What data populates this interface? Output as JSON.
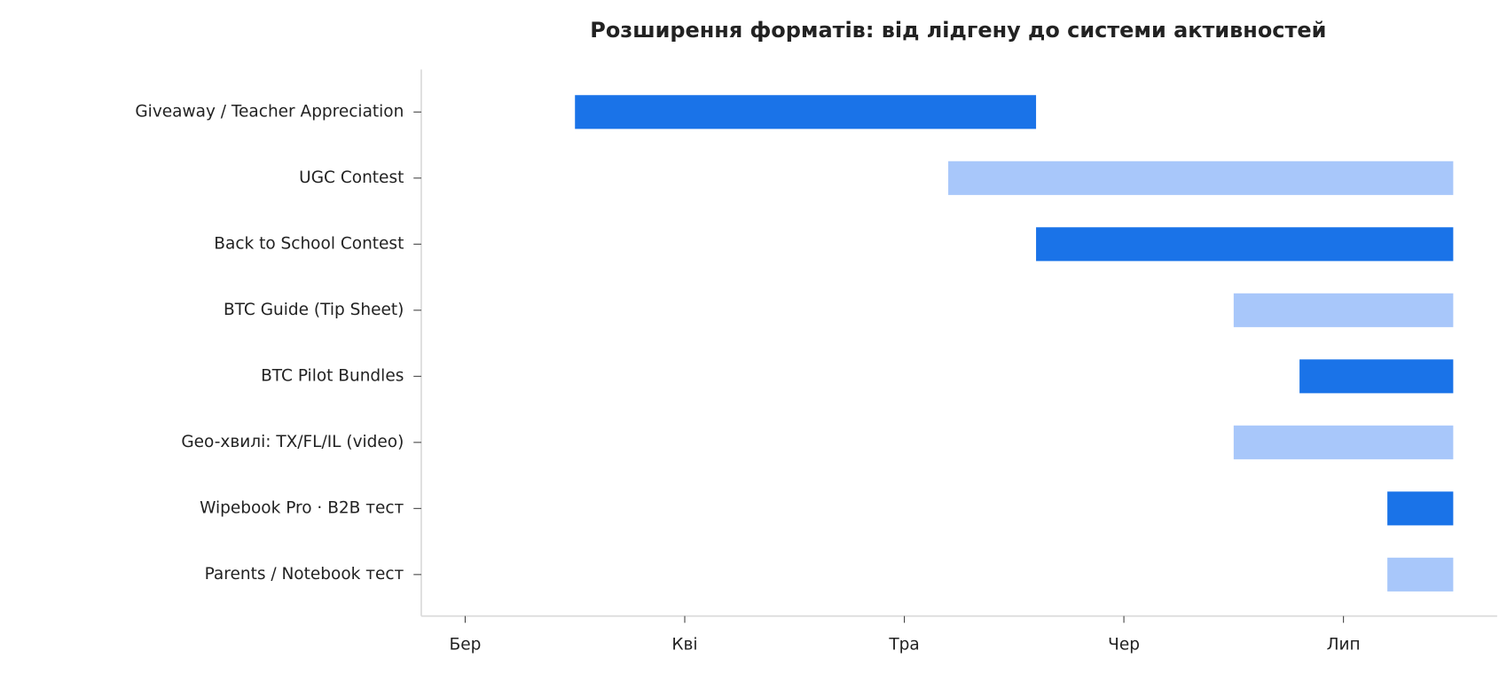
{
  "chart_data": {
    "type": "gantt",
    "title": "Розширення форматів: від лідгену до системи активностей",
    "categories": [
      "Giveaway / Teacher Appreciation",
      "UGC Contest",
      "Back to School Contest",
      "BTC Guide (Tip Sheet)",
      "BTC Pilot Bundles",
      "Geo-хвилі: TX/FL/IL (video)",
      "Wipebook Pro · B2B тест",
      "Parents / Notebook тест"
    ],
    "start": [
      3.5,
      5.2,
      5.6,
      6.5,
      6.8,
      6.5,
      7.2,
      7.2
    ],
    "end": [
      5.6,
      7.5,
      7.5,
      7.5,
      7.5,
      7.5,
      7.5,
      7.5
    ],
    "colors": [
      "#1a73e8",
      "#a8c7fa",
      "#1a73e8",
      "#a8c7fa",
      "#1a73e8",
      "#a8c7fa",
      "#1a73e8",
      "#a8c7fa"
    ],
    "xlim": [
      2.8,
      7.7
    ],
    "xticks": [
      {
        "value": 3,
        "label": "Бер"
      },
      {
        "value": 4,
        "label": "Кві"
      },
      {
        "value": 5,
        "label": "Тра"
      },
      {
        "value": 6,
        "label": "Чер"
      },
      {
        "value": 7,
        "label": "Лип"
      }
    ]
  }
}
